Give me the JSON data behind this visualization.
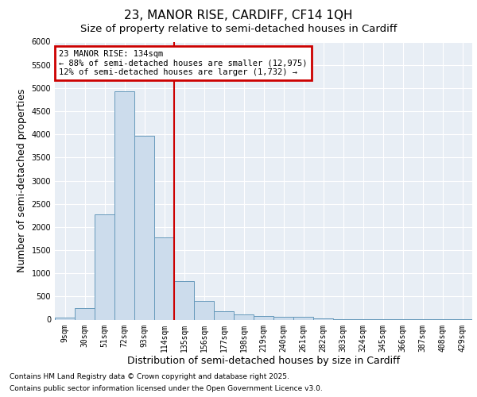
{
  "title_line1": "23, MANOR RISE, CARDIFF, CF14 1QH",
  "title_line2": "Size of property relative to semi-detached houses in Cardiff",
  "xlabel": "Distribution of semi-detached houses by size in Cardiff",
  "ylabel": "Number of semi-detached properties",
  "footnote1": "Contains HM Land Registry data © Crown copyright and database right 2025.",
  "footnote2": "Contains public sector information licensed under the Open Government Licence v3.0.",
  "categories": [
    "9sqm",
    "30sqm",
    "51sqm",
    "72sqm",
    "93sqm",
    "114sqm",
    "135sqm",
    "156sqm",
    "177sqm",
    "198sqm",
    "219sqm",
    "240sqm",
    "261sqm",
    "282sqm",
    "303sqm",
    "324sqm",
    "345sqm",
    "366sqm",
    "387sqm",
    "408sqm",
    "429sqm"
  ],
  "values": [
    50,
    250,
    2280,
    4930,
    3970,
    1780,
    830,
    410,
    175,
    105,
    70,
    60,
    55,
    30,
    10,
    5,
    5,
    2,
    2,
    1,
    1
  ],
  "bar_color": "#ccdcec",
  "bar_edge_color": "#6699bb",
  "vline_color": "#cc0000",
  "vline_pos": 5.5,
  "annotation_text_line1": "23 MANOR RISE: 134sqm",
  "annotation_text_line2": "← 88% of semi-detached houses are smaller (12,975)",
  "annotation_text_line3": "12% of semi-detached houses are larger (1,732) →",
  "annotation_box_color": "#cc0000",
  "ylim": [
    0,
    6000
  ],
  "yticks": [
    0,
    500,
    1000,
    1500,
    2000,
    2500,
    3000,
    3500,
    4000,
    4500,
    5000,
    5500,
    6000
  ],
  "background_color": "#ffffff",
  "plot_background": "#e8eef5",
  "grid_color": "#ffffff",
  "title_fontsize": 11,
  "subtitle_fontsize": 9.5,
  "axis_label_fontsize": 9,
  "tick_fontsize": 7,
  "annotation_fontsize": 7.5,
  "footnote_fontsize": 6.5
}
